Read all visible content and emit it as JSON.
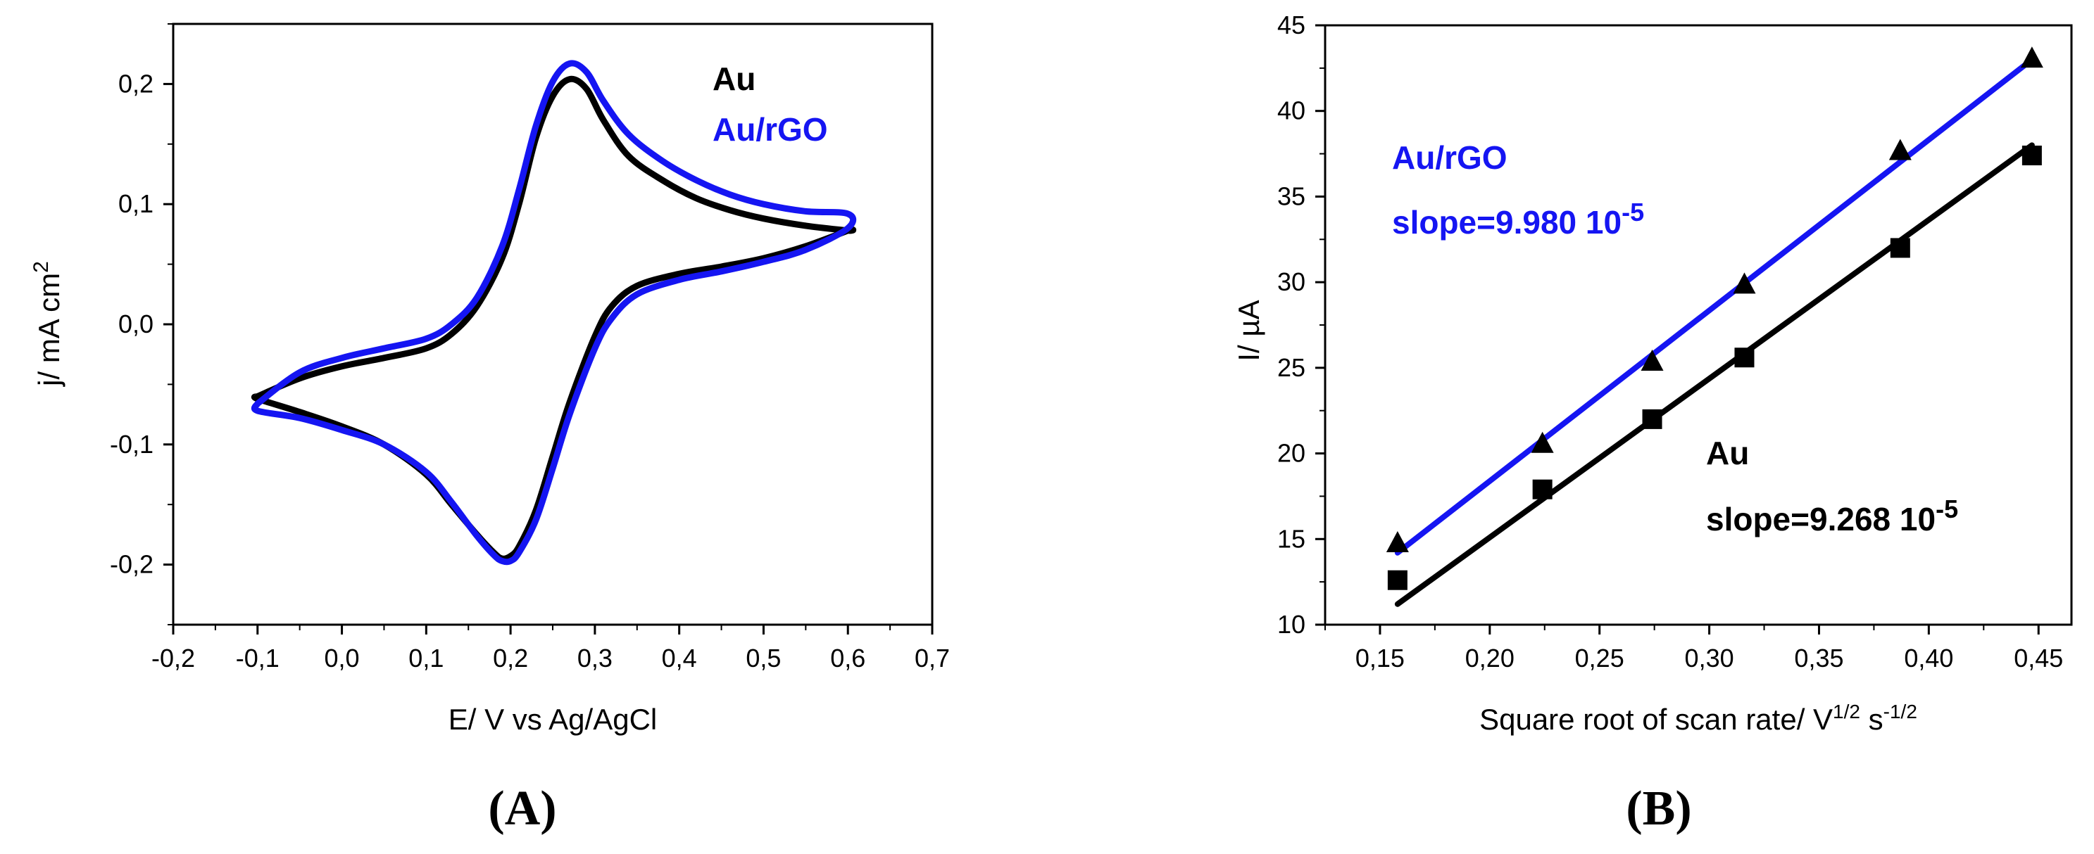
{
  "chart_data": [
    {
      "type": "line",
      "panel_label": "(A)",
      "xlabel": "E/ V vs Ag/AgCl",
      "ylabel": {
        "text": "j/ mA cm",
        "sup": "2"
      },
      "xlim": [
        -0.2,
        0.7
      ],
      "ylim": [
        -0.25,
        0.25
      ],
      "x_ticks": [
        -0.2,
        -0.1,
        0.0,
        0.1,
        0.2,
        0.3,
        0.4,
        0.5,
        0.6,
        0.7
      ],
      "x_tick_labels": [
        "-0,2",
        "-0,1",
        "0,0",
        "0,1",
        "0,2",
        "0,3",
        "0,4",
        "0,5",
        "0,6",
        "0,7"
      ],
      "y_ticks": [
        -0.2,
        -0.1,
        0.0,
        0.1,
        0.2
      ],
      "y_tick_labels": [
        "-0,2",
        "-0,1",
        "0,0",
        "0,1",
        "0,2"
      ],
      "grid": false,
      "legend_position": "top-right",
      "series": [
        {
          "name": "Au",
          "color": "#000000",
          "forward": {
            "x": [
              -0.1,
              -0.05,
              0.0,
              0.05,
              0.1,
              0.13,
              0.16,
              0.19,
              0.21,
              0.23,
              0.25,
              0.27,
              0.29,
              0.31,
              0.34,
              0.38,
              0.42,
              0.46,
              0.5,
              0.55,
              0.6
            ],
            "y": [
              -0.06,
              -0.045,
              -0.035,
              -0.028,
              -0.02,
              -0.008,
              0.015,
              0.055,
              0.1,
              0.155,
              0.19,
              0.204,
              0.196,
              0.17,
              0.14,
              0.12,
              0.105,
              0.095,
              0.088,
              0.082,
              0.078
            ]
          },
          "reverse": {
            "x": [
              0.6,
              0.55,
              0.5,
              0.45,
              0.4,
              0.35,
              0.32,
              0.3,
              0.27,
              0.25,
              0.23,
              0.21,
              0.2,
              0.19,
              0.18,
              0.16,
              0.13,
              0.1,
              0.05,
              0.0,
              -0.05,
              -0.1
            ],
            "y": [
              0.078,
              0.065,
              0.055,
              0.048,
              0.042,
              0.032,
              0.015,
              -0.01,
              -0.065,
              -0.11,
              -0.155,
              -0.185,
              -0.193,
              -0.195,
              -0.19,
              -0.175,
              -0.15,
              -0.125,
              -0.1,
              -0.085,
              -0.073,
              -0.062
            ]
          }
        },
        {
          "name": "Au/rGO",
          "color": "#1515f2",
          "forward": {
            "x": [
              -0.1,
              -0.05,
              0.0,
              0.05,
              0.1,
              0.13,
              0.16,
              0.19,
              0.21,
              0.23,
              0.25,
              0.27,
              0.29,
              0.31,
              0.34,
              0.38,
              0.42,
              0.46,
              0.5,
              0.55,
              0.6
            ],
            "y": [
              -0.066,
              -0.04,
              -0.028,
              -0.02,
              -0.012,
              0.0,
              0.022,
              0.065,
              0.112,
              0.165,
              0.202,
              0.217,
              0.21,
              0.186,
              0.158,
              0.136,
              0.12,
              0.108,
              0.1,
              0.094,
              0.092
            ]
          },
          "reverse": {
            "x": [
              0.6,
              0.55,
              0.5,
              0.45,
              0.4,
              0.35,
              0.32,
              0.3,
              0.27,
              0.25,
              0.23,
              0.21,
              0.2,
              0.19,
              0.18,
              0.16,
              0.13,
              0.1,
              0.05,
              0.0,
              -0.05,
              -0.1
            ],
            "y": [
              0.08,
              0.062,
              0.052,
              0.044,
              0.037,
              0.025,
              0.005,
              -0.02,
              -0.075,
              -0.12,
              -0.163,
              -0.19,
              -0.197,
              -0.197,
              -0.192,
              -0.176,
              -0.148,
              -0.123,
              -0.1,
              -0.088,
              -0.078,
              -0.072
            ]
          }
        }
      ]
    },
    {
      "type": "scatter",
      "panel_label": "(B)",
      "xlabel": {
        "text": "Square root of scan rate/ V",
        "sup1": "1/2",
        "mid": " s",
        "sup2": "-1/2"
      },
      "ylabel": "I/  µA",
      "xlim": [
        0.125,
        0.465
      ],
      "ylim": [
        10,
        45
      ],
      "x_ticks": [
        0.15,
        0.2,
        0.25,
        0.3,
        0.35,
        0.4,
        0.45
      ],
      "x_tick_labels": [
        "0,15",
        "0,20",
        "0,25",
        "0,30",
        "0,35",
        "0,40",
        "0,45"
      ],
      "y_ticks": [
        10,
        15,
        20,
        25,
        30,
        35,
        40,
        45
      ],
      "y_tick_labels": [
        "10",
        "15",
        "20",
        "25",
        "30",
        "35",
        "40",
        "45"
      ],
      "grid": false,
      "series": [
        {
          "name": "Au/rGO",
          "marker": "triangle",
          "color": "#000000",
          "line_color": "#1515f2",
          "x": [
            0.158,
            0.224,
            0.274,
            0.316,
            0.387,
            0.447
          ],
          "y": [
            14.7,
            20.5,
            25.3,
            29.8,
            37.6,
            43.0
          ],
          "fit": {
            "x": [
              0.158,
              0.447
            ],
            "y": [
              14.2,
              43.0
            ]
          },
          "label": "Au/rGO",
          "slope_label": {
            "text": "slope=9.980 10",
            "sup": "-5"
          }
        },
        {
          "name": "Au",
          "marker": "square",
          "color": "#000000",
          "line_color": "#000000",
          "x": [
            0.158,
            0.224,
            0.274,
            0.316,
            0.387,
            0.447
          ],
          "y": [
            12.6,
            17.9,
            22.0,
            25.6,
            32.0,
            37.4
          ],
          "fit": {
            "x": [
              0.158,
              0.447
            ],
            "y": [
              11.2,
              38.0
            ]
          },
          "label": "Au",
          "slope_label": {
            "text": "slope=9.268 10",
            "sup": "-5"
          }
        }
      ]
    }
  ]
}
